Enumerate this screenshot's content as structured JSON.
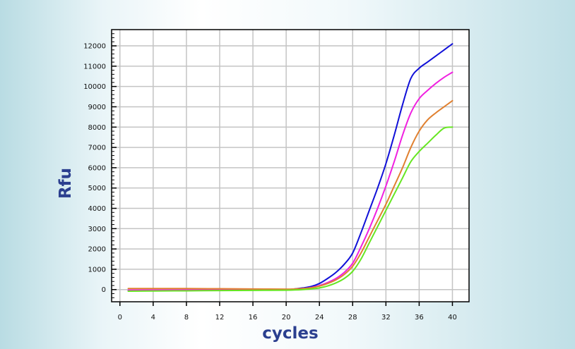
{
  "chart_data": {
    "type": "line",
    "title": "",
    "xlabel": "cycles",
    "ylabel": "Rfu",
    "xlim": [
      -1,
      42
    ],
    "ylim": [
      -600,
      12800
    ],
    "x_ticks": [
      0,
      4,
      8,
      12,
      16,
      20,
      24,
      28,
      32,
      36,
      40
    ],
    "x_tick_labels": [
      "0",
      "4",
      "8",
      "12",
      "16",
      "20",
      "24",
      "28",
      "32",
      "36",
      "40"
    ],
    "y_ticks": [
      0,
      1000,
      2000,
      3000,
      4000,
      5000,
      6000,
      7000,
      8000,
      9000,
      10000,
      11000,
      12000
    ],
    "y_tick_labels": [
      "0",
      "1000",
      "2000",
      "3000",
      "4000",
      "5000",
      "6000",
      "7000",
      "8000",
      "9000",
      "10000",
      "11000",
      "12000"
    ],
    "grid": true,
    "legend": "none",
    "series": [
      {
        "color": "#1010d8",
        "x": [
          1,
          4,
          8,
          12,
          16,
          20,
          21,
          22,
          23,
          24,
          25,
          26,
          27,
          28,
          29,
          30,
          31,
          32,
          33,
          34,
          35,
          36,
          37,
          38,
          39,
          40
        ],
        "y": [
          -50,
          -40,
          -30,
          -20,
          -10,
          0,
          30,
          80,
          150,
          300,
          550,
          850,
          1250,
          1800,
          2800,
          3900,
          5000,
          6200,
          7600,
          9100,
          10400,
          10900,
          11200,
          11500,
          11800,
          12100
        ]
      },
      {
        "color": "#f020e0",
        "x": [
          1,
          4,
          8,
          12,
          16,
          20,
          21,
          22,
          23,
          24,
          25,
          26,
          27,
          28,
          29,
          30,
          31,
          32,
          33,
          34,
          35,
          36,
          37,
          38,
          39,
          40
        ],
        "y": [
          -30,
          -25,
          -20,
          -15,
          -5,
          0,
          20,
          50,
          100,
          200,
          350,
          550,
          850,
          1300,
          2100,
          3000,
          4000,
          5100,
          6300,
          7600,
          8700,
          9400,
          9800,
          10150,
          10450,
          10700
        ]
      },
      {
        "color": "#e08030",
        "x": [
          1,
          4,
          8,
          12,
          16,
          20,
          21,
          22,
          23,
          24,
          25,
          26,
          27,
          28,
          29,
          30,
          31,
          32,
          33,
          34,
          35,
          36,
          37,
          38,
          39,
          40
        ],
        "y": [
          50,
          50,
          50,
          40,
          30,
          20,
          30,
          50,
          90,
          170,
          300,
          480,
          750,
          1150,
          1800,
          2600,
          3400,
          4200,
          5100,
          6000,
          7000,
          7800,
          8350,
          8700,
          9000,
          9300
        ]
      },
      {
        "color": "#66e622",
        "x": [
          1,
          4,
          8,
          12,
          16,
          20,
          21,
          22,
          23,
          24,
          25,
          26,
          27,
          28,
          29,
          30,
          31,
          32,
          33,
          34,
          35,
          36,
          37,
          38,
          39,
          40
        ],
        "y": [
          -80,
          -70,
          -60,
          -50,
          -40,
          -30,
          -20,
          0,
          30,
          80,
          180,
          330,
          550,
          900,
          1500,
          2300,
          3100,
          3900,
          4700,
          5500,
          6300,
          6800,
          7200,
          7600,
          7950,
          8000
        ]
      }
    ]
  }
}
